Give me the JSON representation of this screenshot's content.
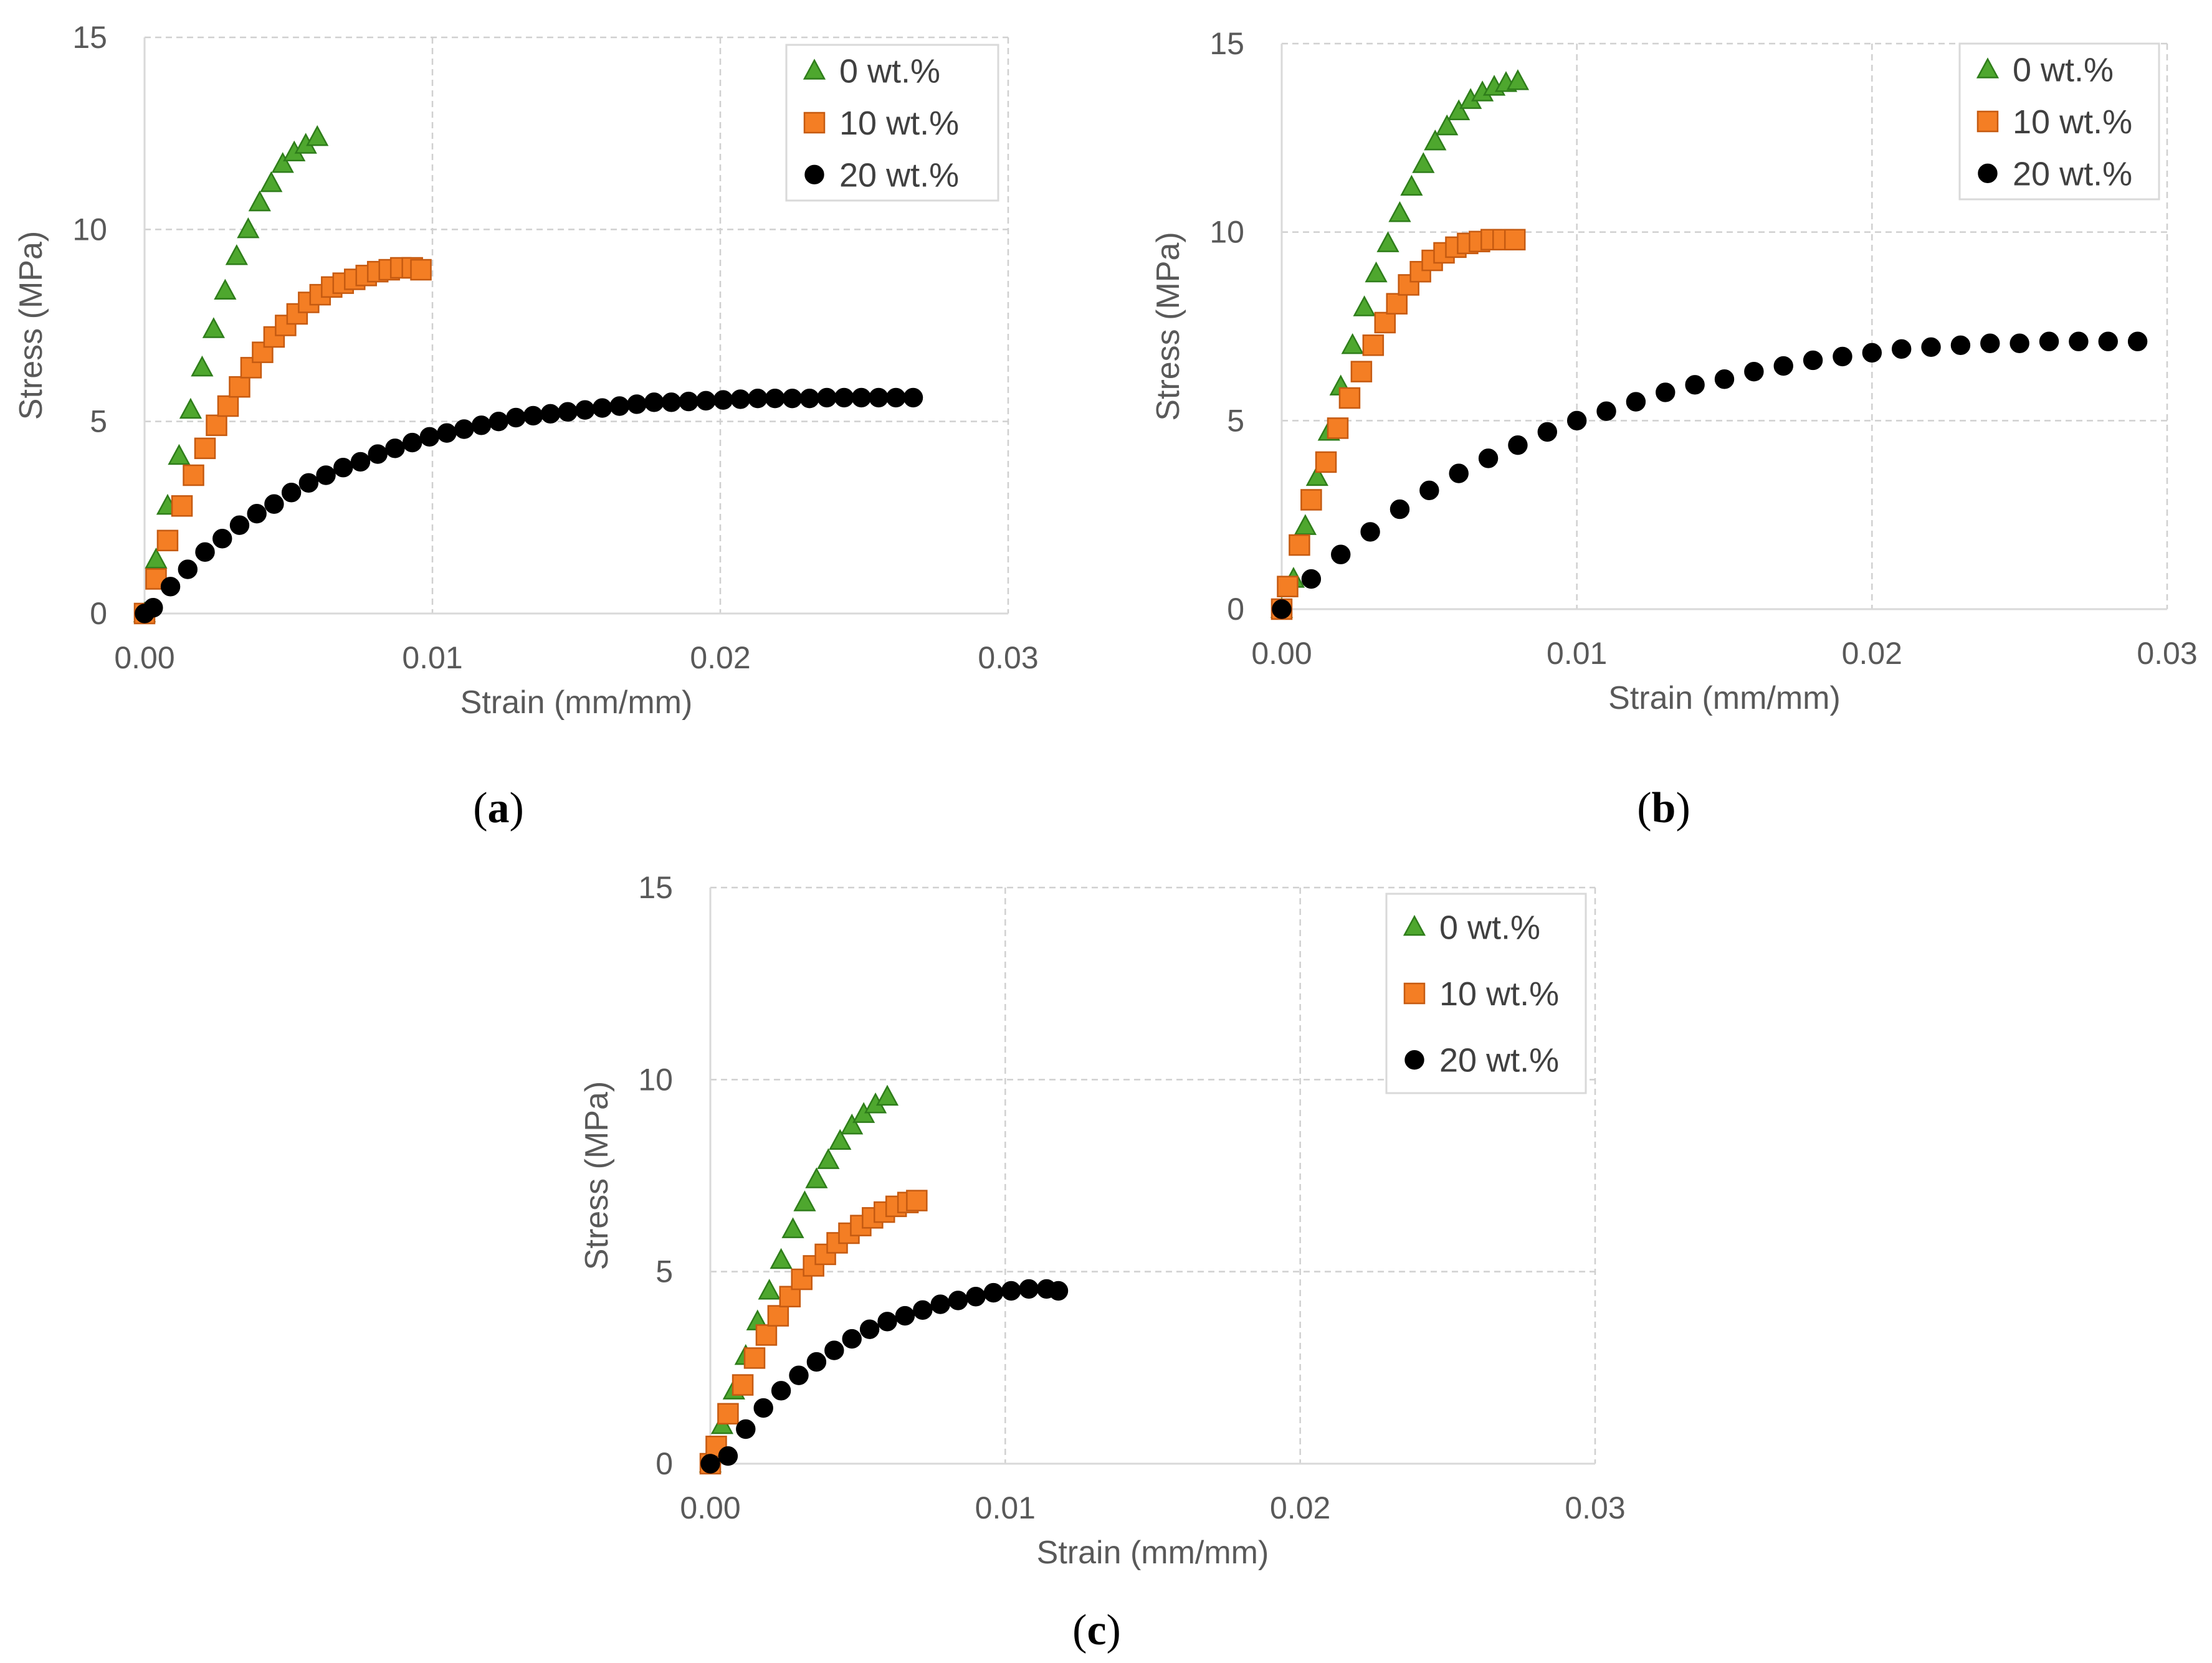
{
  "chart_data": [
    {
      "type": "scatter",
      "panel_label": "a",
      "xlabel": "Strain (mm/mm)",
      "ylabel": "Stress (MPa)",
      "xlim": [
        0,
        0.03
      ],
      "ylim": [
        0,
        15
      ],
      "x_ticks": [
        "0.00",
        "0.01",
        "0.02",
        "0.03"
      ],
      "y_ticks": [
        "0",
        "5",
        "10",
        "15"
      ],
      "grid": true,
      "legend_position": "top-right",
      "series": [
        {
          "name": "0 wt.%",
          "marker": "triangle",
          "color": "#4ea72e",
          "edge": "#2e7d1a",
          "x": [
            0,
            0.0004,
            0.0008,
            0.0012,
            0.0016,
            0.002,
            0.0024,
            0.0028,
            0.0032,
            0.0036,
            0.004,
            0.0044,
            0.0048,
            0.0052,
            0.0056,
            0.006
          ],
          "y": [
            0,
            1.4,
            2.8,
            4.1,
            5.3,
            6.4,
            7.4,
            8.4,
            9.3,
            10.0,
            10.7,
            11.2,
            11.7,
            12.0,
            12.2,
            12.4
          ]
        },
        {
          "name": "10 wt.%",
          "marker": "square",
          "color": "#f47e24",
          "edge": "#c55a11",
          "x": [
            0,
            0.0004,
            0.0008,
            0.0013,
            0.0017,
            0.0021,
            0.0025,
            0.0029,
            0.0033,
            0.0037,
            0.0041,
            0.0045,
            0.0049,
            0.0053,
            0.0057,
            0.0061,
            0.0065,
            0.0069,
            0.0073,
            0.0077,
            0.0081,
            0.0085,
            0.0089,
            0.0093,
            0.0096
          ],
          "y": [
            0,
            0.9,
            1.9,
            2.8,
            3.6,
            4.3,
            4.9,
            5.4,
            5.9,
            6.4,
            6.8,
            7.2,
            7.5,
            7.8,
            8.1,
            8.3,
            8.5,
            8.6,
            8.7,
            8.8,
            8.9,
            8.95,
            9.0,
            9.0,
            8.95
          ]
        },
        {
          "name": "20 wt.%",
          "marker": "circle",
          "color": "#000000",
          "edge": "#000000",
          "x": [
            0,
            0.0003,
            0.0009,
            0.0015,
            0.0021,
            0.0027,
            0.0033,
            0.0039,
            0.0045,
            0.0051,
            0.0057,
            0.0063,
            0.0069,
            0.0075,
            0.0081,
            0.0087,
            0.0093,
            0.0099,
            0.0105,
            0.0111,
            0.0117,
            0.0123,
            0.0129,
            0.0135,
            0.0141,
            0.0147,
            0.0153,
            0.0159,
            0.0165,
            0.0171,
            0.0177,
            0.0183,
            0.0189,
            0.0195,
            0.0201,
            0.0207,
            0.0213,
            0.0219,
            0.0225,
            0.0231,
            0.0237,
            0.0243,
            0.0249,
            0.0255,
            0.0261,
            0.0267
          ],
          "y": [
            0,
            0.15,
            0.7,
            1.15,
            1.6,
            1.95,
            2.3,
            2.6,
            2.85,
            3.15,
            3.4,
            3.6,
            3.8,
            3.95,
            4.15,
            4.3,
            4.45,
            4.6,
            4.7,
            4.8,
            4.9,
            5.0,
            5.1,
            5.15,
            5.2,
            5.25,
            5.3,
            5.35,
            5.4,
            5.45,
            5.5,
            5.5,
            5.52,
            5.54,
            5.56,
            5.58,
            5.6,
            5.6,
            5.6,
            5.6,
            5.62,
            5.62,
            5.62,
            5.62,
            5.62,
            5.62
          ]
        }
      ]
    },
    {
      "type": "scatter",
      "panel_label": "b",
      "xlabel": "Strain (mm/mm)",
      "ylabel": "Stress (MPa)",
      "xlim": [
        0,
        0.03
      ],
      "ylim": [
        0,
        15
      ],
      "x_ticks": [
        "0.00",
        "0.01",
        "0.02",
        "0.03"
      ],
      "y_ticks": [
        "0",
        "5",
        "10",
        "15"
      ],
      "grid": true,
      "legend_position": "top-right",
      "series": [
        {
          "name": "0 wt.%",
          "marker": "triangle",
          "color": "#4ea72e",
          "edge": "#2e7d1a",
          "x": [
            0,
            0.0004,
            0.0008,
            0.0012,
            0.0016,
            0.002,
            0.0024,
            0.0028,
            0.0032,
            0.0036,
            0.004,
            0.0044,
            0.0048,
            0.0052,
            0.0056,
            0.006,
            0.0064,
            0.0068,
            0.0072,
            0.0076,
            0.008
          ],
          "y": [
            0,
            0.8,
            2.2,
            3.5,
            4.7,
            5.9,
            7.0,
            8.0,
            8.9,
            9.7,
            10.5,
            11.2,
            11.8,
            12.4,
            12.8,
            13.2,
            13.5,
            13.7,
            13.85,
            13.95,
            14.0
          ]
        },
        {
          "name": "10 wt.%",
          "marker": "square",
          "color": "#f47e24",
          "edge": "#c55a11",
          "x": [
            0,
            0.0002,
            0.0006,
            0.001,
            0.0015,
            0.0019,
            0.0023,
            0.0027,
            0.0031,
            0.0035,
            0.0039,
            0.0043,
            0.0047,
            0.0051,
            0.0055,
            0.0059,
            0.0063,
            0.0067,
            0.0071,
            0.0075,
            0.0079
          ],
          "y": [
            0,
            0.6,
            1.7,
            2.9,
            3.9,
            4.8,
            5.6,
            6.3,
            7.0,
            7.6,
            8.1,
            8.6,
            8.95,
            9.25,
            9.45,
            9.6,
            9.7,
            9.75,
            9.8,
            9.8,
            9.8
          ]
        },
        {
          "name": "20 wt.%",
          "marker": "circle",
          "color": "#000000",
          "edge": "#000000",
          "x": [
            0,
            0.001,
            0.002,
            0.003,
            0.004,
            0.005,
            0.006,
            0.007,
            0.008,
            0.009,
            0.01,
            0.011,
            0.012,
            0.013,
            0.014,
            0.015,
            0.016,
            0.017,
            0.018,
            0.019,
            0.02,
            0.021,
            0.022,
            0.023,
            0.024,
            0.025,
            0.026,
            0.027,
            0.028,
            0.029
          ],
          "y": [
            0,
            0.8,
            1.45,
            2.05,
            2.65,
            3.15,
            3.6,
            4.0,
            4.35,
            4.7,
            5.0,
            5.25,
            5.5,
            5.75,
            5.95,
            6.1,
            6.3,
            6.45,
            6.6,
            6.7,
            6.8,
            6.9,
            6.95,
            7.0,
            7.05,
            7.05,
            7.1,
            7.1,
            7.1,
            7.1
          ]
        }
      ]
    },
    {
      "type": "scatter",
      "panel_label": "c",
      "xlabel": "Strain (mm/mm)",
      "ylabel": "Stress (MPa)",
      "xlim": [
        0,
        0.03
      ],
      "ylim": [
        0,
        15
      ],
      "x_ticks": [
        "0.00",
        "0.01",
        "0.02",
        "0.03"
      ],
      "y_ticks": [
        "0",
        "5",
        "10",
        "15"
      ],
      "grid": true,
      "legend_position": "top-right",
      "series": [
        {
          "name": "0 wt.%",
          "marker": "triangle",
          "color": "#4ea72e",
          "edge": "#2e7d1a",
          "x": [
            0,
            0.0004,
            0.0008,
            0.0012,
            0.0016,
            0.002,
            0.0024,
            0.0028,
            0.0032,
            0.0036,
            0.004,
            0.0044,
            0.0048,
            0.0052,
            0.0056,
            0.006
          ],
          "y": [
            0,
            1.0,
            1.9,
            2.8,
            3.7,
            4.5,
            5.3,
            6.1,
            6.8,
            7.4,
            7.9,
            8.4,
            8.8,
            9.1,
            9.35,
            9.55
          ]
        },
        {
          "name": "10 wt.%",
          "marker": "square",
          "color": "#f47e24",
          "edge": "#c55a11",
          "x": [
            0,
            0.0002,
            0.0006,
            0.0011,
            0.0015,
            0.0019,
            0.0023,
            0.0027,
            0.0031,
            0.0035,
            0.0039,
            0.0043,
            0.0047,
            0.0051,
            0.0055,
            0.0059,
            0.0063,
            0.0067,
            0.007
          ],
          "y": [
            0,
            0.45,
            1.3,
            2.05,
            2.75,
            3.35,
            3.85,
            4.35,
            4.8,
            5.15,
            5.45,
            5.75,
            6.0,
            6.2,
            6.4,
            6.55,
            6.7,
            6.8,
            6.85
          ]
        },
        {
          "name": "20 wt.%",
          "marker": "circle",
          "color": "#000000",
          "edge": "#000000",
          "x": [
            0,
            0.0006,
            0.0012,
            0.0018,
            0.0024,
            0.003,
            0.0036,
            0.0042,
            0.0048,
            0.0054,
            0.006,
            0.0066,
            0.0072,
            0.0078,
            0.0084,
            0.009,
            0.0096,
            0.0102,
            0.0108,
            0.0114,
            0.0118
          ],
          "y": [
            0,
            0.2,
            0.9,
            1.45,
            1.9,
            2.3,
            2.65,
            2.95,
            3.25,
            3.5,
            3.7,
            3.85,
            4.0,
            4.15,
            4.25,
            4.35,
            4.45,
            4.5,
            4.55,
            4.55,
            4.5
          ]
        }
      ]
    }
  ]
}
